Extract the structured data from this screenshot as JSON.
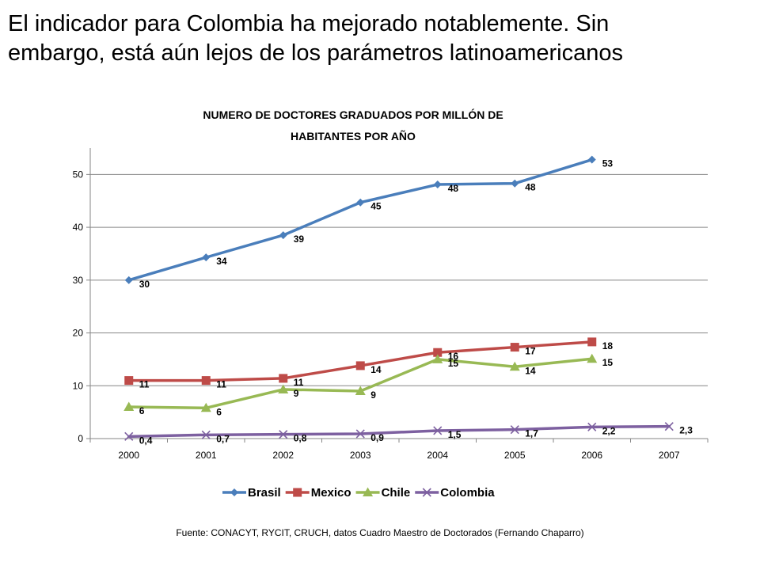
{
  "slide": {
    "title_line1": "El indicador para Colombia ha mejorado notablemente. Sin",
    "title_line2": "embargo, está aún lejos de los parámetros latinoamericanos",
    "source": "Fuente: CONACYT, RYCIT, CRUCH, datos Cuadro Maestro de Doctorados (Fernando Chaparro)"
  },
  "chart_data": {
    "type": "line",
    "title_line1": "NUMERO DE DOCTORES GRADUADOS POR MILLÓN DE",
    "title_line2": "HABITANTES POR AÑO",
    "categories": [
      "2000",
      "2001",
      "2002",
      "2003",
      "2004",
      "2005",
      "2006",
      "2007"
    ],
    "ylim": [
      0,
      55
    ],
    "yticks": [
      0,
      10,
      20,
      30,
      40,
      50
    ],
    "grid": true,
    "legend_position": "bottom",
    "series": [
      {
        "name": "Brasil",
        "color": "#4A7EBB",
        "marker": "diamond",
        "values": [
          30,
          34.3,
          38.5,
          44.7,
          48.1,
          48.3,
          52.8,
          null
        ],
        "labels": [
          "30",
          "34",
          "39",
          "45",
          "48",
          "48",
          "53",
          null
        ]
      },
      {
        "name": "Mexico",
        "color": "#BE4B48",
        "marker": "square",
        "values": [
          11,
          11,
          11.4,
          13.8,
          16.3,
          17.3,
          18.3,
          null
        ],
        "labels": [
          "11",
          "11",
          "11",
          "14",
          "16",
          "17",
          "18",
          null
        ]
      },
      {
        "name": "Chile",
        "color": "#98B954",
        "marker": "triangle",
        "values": [
          6,
          5.8,
          9.3,
          9,
          15,
          13.6,
          15.1,
          null
        ],
        "labels": [
          "6",
          "6",
          "9",
          "9",
          "15",
          "14",
          "15",
          null
        ]
      },
      {
        "name": "Colombia",
        "color": "#7D60A0",
        "marker": "x",
        "values": [
          0.4,
          0.7,
          0.8,
          0.9,
          1.5,
          1.7,
          2.2,
          2.3
        ],
        "labels": [
          "0,4",
          "0,7",
          "0,8",
          "0,9",
          "1,5",
          "1,7",
          "2,2",
          "2,3"
        ]
      }
    ]
  }
}
